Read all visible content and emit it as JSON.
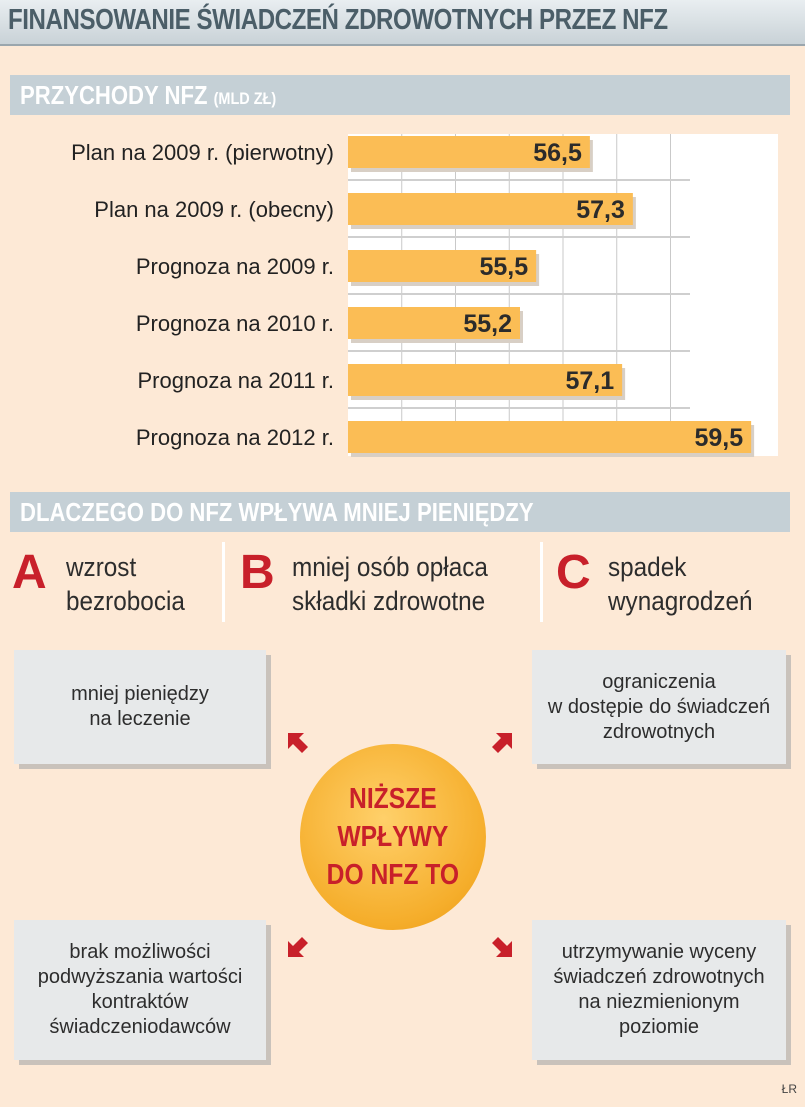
{
  "title": "FINANSOWANIE ŚWIADCZEŃ ZDROWOTNYCH PRZEZ NFZ",
  "section_revenue": {
    "title": "PRZYCHODY NFZ",
    "unit": "(MLD ZŁ)"
  },
  "chart_data": {
    "type": "bar",
    "orientation": "horizontal",
    "categories": [
      "Plan na 2009 r. (pierwotny)",
      "Plan na 2009 r. (obecny)",
      "Prognoza na 2009 r.",
      "Prognoza na 2010 r.",
      "Prognoza na 2011 r.",
      "Prognoza na 2012 r."
    ],
    "values": [
      56.5,
      57.3,
      55.5,
      55.2,
      57.1,
      59.5
    ],
    "value_labels": [
      "56,5",
      "57,3",
      "55,5",
      "55,2",
      "57,1",
      "59,5"
    ],
    "title": "PRZYCHODY NFZ",
    "unit": "(MLD ZŁ)",
    "xlim": [
      52,
      60
    ],
    "grid": true,
    "bar_color": "#fbbd55"
  },
  "section_reasons": {
    "title": "DLACZEGO DO NFZ WPŁYWA MNIEJ PIENIĘDZY"
  },
  "causes": [
    {
      "letter": "A",
      "text": "wzrost\nbezrobocia"
    },
    {
      "letter": "B",
      "text": "mniej osób opłaca\nskładki zdrowotne"
    },
    {
      "letter": "C",
      "text": "spadek\nwynagrodzeń"
    }
  ],
  "center": {
    "text": "NIŻSZE\nWPŁYWY\nDO NFZ TO"
  },
  "effects": {
    "top_left": "mniej pieniędzy\nna leczenie",
    "top_right": "ograniczenia\nw dostępie do świadczeń\nzdrowotnych",
    "bottom_left": "brak możliwości\npodwyższania wartości\nkontraktów\nświadczeniodawców",
    "bottom_right": "utrzymywanie wyceny\nświadczeń zdrowotnych\nna niezmienionym\npoziomie"
  },
  "credit": "ŁR",
  "colors": {
    "accent_red": "#c8202a",
    "bar": "#fbbd55",
    "band": "#c5d0d6"
  }
}
